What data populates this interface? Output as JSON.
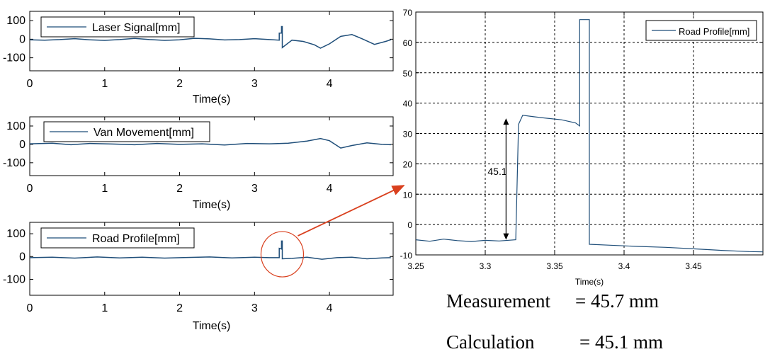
{
  "chart_data": [
    {
      "type": "line",
      "legend": "Laser Signal[mm]",
      "xlabel": "Time(s)",
      "xlim": [
        0,
        4.85
      ],
      "ylim": [
        -170,
        150
      ],
      "xticks": [
        0,
        1,
        2,
        3,
        4
      ],
      "yticks": [
        100,
        0,
        -100
      ],
      "x": [
        0,
        0.2,
        0.4,
        0.6,
        0.8,
        1.0,
        1.2,
        1.4,
        1.6,
        1.8,
        2.0,
        2.2,
        2.4,
        2.6,
        2.8,
        3.0,
        3.2,
        3.33,
        3.33,
        3.36,
        3.36,
        3.37,
        3.37,
        3.5,
        3.65,
        3.8,
        3.88,
        4.0,
        4.15,
        4.3,
        4.45,
        4.6,
        4.75,
        4.82
      ],
      "y": [
        -3,
        -5,
        -2,
        3,
        -3,
        -6,
        -2,
        4,
        -2,
        -6,
        -3,
        5,
        2,
        -4,
        -2,
        3,
        -2,
        -5,
        33,
        33,
        68,
        68,
        -45,
        -5,
        -12,
        -30,
        -48,
        -25,
        15,
        25,
        0,
        -28,
        -12,
        -3
      ],
      "color": "#1f4e79"
    },
    {
      "type": "line",
      "legend": "Van Movement[mm]",
      "xlabel": "Time(s)",
      "xlim": [
        0,
        4.85
      ],
      "ylim": [
        -170,
        150
      ],
      "xticks": [
        0,
        1,
        2,
        3,
        4
      ],
      "yticks": [
        100,
        0,
        -100
      ],
      "x": [
        0,
        0.3,
        0.55,
        0.8,
        1.1,
        1.4,
        1.7,
        2.0,
        2.3,
        2.6,
        2.9,
        3.2,
        3.45,
        3.7,
        3.88,
        4.0,
        4.15,
        4.3,
        4.5,
        4.7,
        4.82
      ],
      "y": [
        3,
        6,
        -2,
        5,
        2,
        -2,
        5,
        0,
        3,
        -3,
        5,
        3,
        6,
        18,
        32,
        20,
        -20,
        -6,
        8,
        0,
        -2
      ],
      "color": "#1f4e79"
    },
    {
      "type": "line",
      "legend": "Road Profile[mm]",
      "xlabel": "Time(s)",
      "xlim": [
        0,
        4.85
      ],
      "ylim": [
        -170,
        150
      ],
      "xticks": [
        0,
        1,
        2,
        3,
        4
      ],
      "yticks": [
        100,
        0,
        -100
      ],
      "x": [
        0,
        0.3,
        0.6,
        0.9,
        1.2,
        1.5,
        1.8,
        2.1,
        2.4,
        2.7,
        3.0,
        3.2,
        3.33,
        3.33,
        3.36,
        3.36,
        3.37,
        3.37,
        3.5,
        3.7,
        3.9,
        4.1,
        4.3,
        4.5,
        4.7,
        4.82
      ],
      "y": [
        -5,
        -3,
        -7,
        -2,
        -6,
        -3,
        -7,
        -4,
        -2,
        -6,
        -3,
        -5,
        -5,
        36,
        33,
        68,
        68,
        -10,
        -8,
        -3,
        -12,
        -5,
        -3,
        -10,
        -6,
        -5
      ],
      "color": "#1f4e79"
    },
    {
      "type": "line",
      "legend": "Road Profile[mm]",
      "xlabel": "Time(s)",
      "xlim": [
        3.25,
        3.5
      ],
      "ylim": [
        -10,
        70
      ],
      "xticks": [
        3.25,
        3.3,
        3.35,
        3.4,
        3.45
      ],
      "xtick_labels": [
        "3.25",
        "3.3",
        "3.35",
        "3.4",
        "3.45"
      ],
      "yticks": [
        70,
        60,
        50,
        40,
        30,
        20,
        10,
        0,
        -10
      ],
      "grid": true,
      "x": [
        3.25,
        3.26,
        3.27,
        3.28,
        3.29,
        3.3,
        3.31,
        3.322,
        3.324,
        3.327,
        3.335,
        3.345,
        3.355,
        3.365,
        3.368,
        3.368,
        3.375,
        3.375,
        3.39,
        3.41,
        3.43,
        3.45,
        3.47,
        3.49,
        3.5
      ],
      "y": [
        -5,
        -5.5,
        -4.8,
        -5.3,
        -5.6,
        -5.2,
        -5.4,
        -5.0,
        33,
        36,
        35.5,
        35,
        34.5,
        33.5,
        32.5,
        67.5,
        67.5,
        -6.5,
        -6.8,
        -7.2,
        -7.5,
        -8,
        -8.5,
        -8.9,
        -9
      ],
      "annotations": [
        "45.1"
      ],
      "color": "#1f4e79"
    }
  ],
  "summary": {
    "measurement_label": "Measurement",
    "measurement_value": "=  45.7 mm",
    "calculation_label": "Calculation",
    "calculation_value": "=  45.1 mm"
  }
}
